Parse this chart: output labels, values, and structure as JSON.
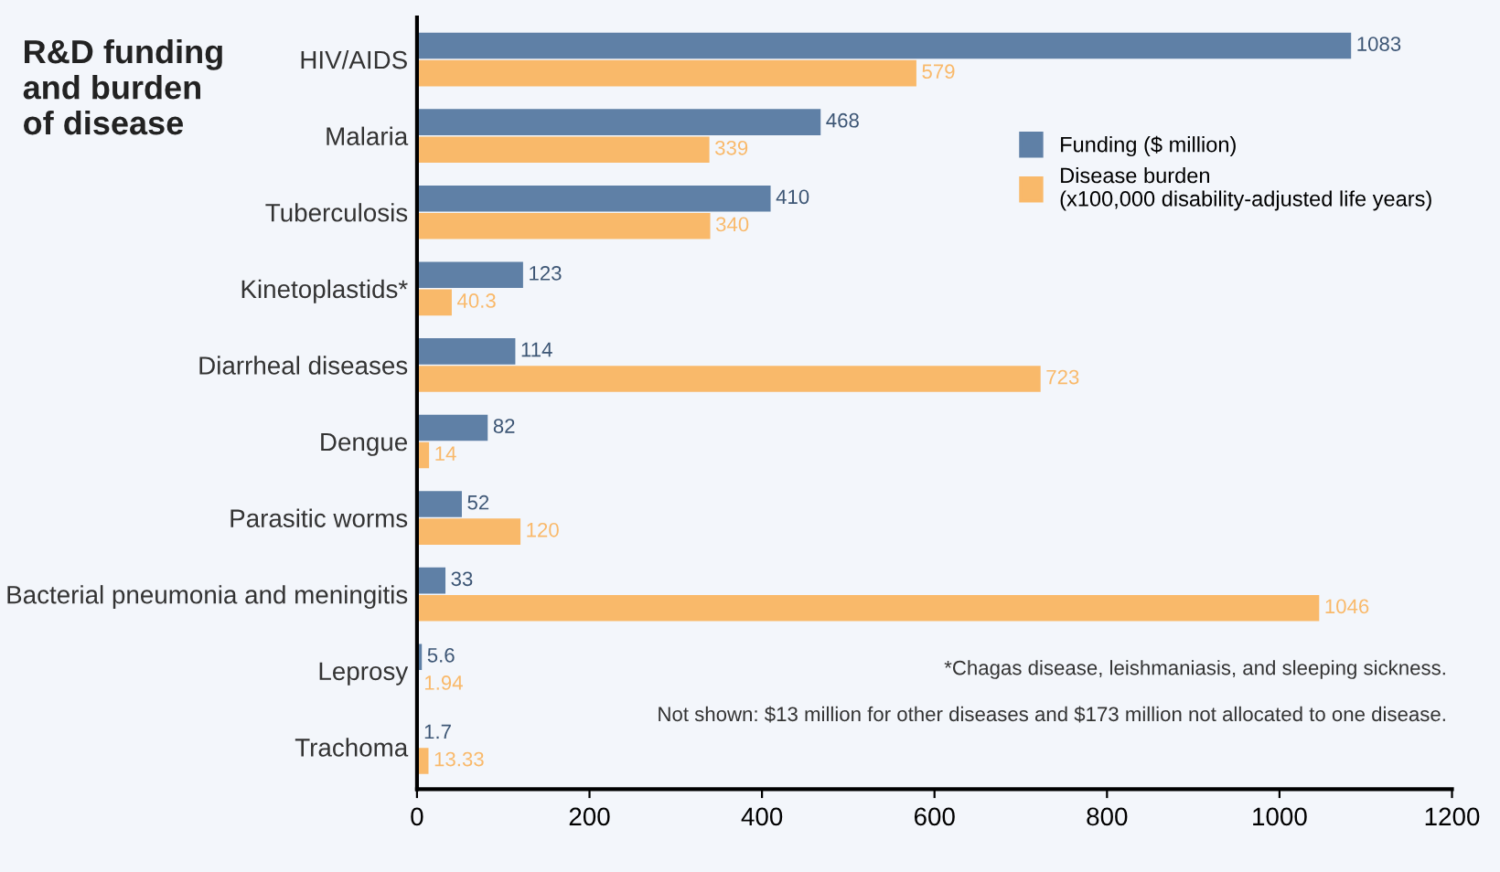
{
  "chart_data": {
    "type": "bar",
    "orientation": "horizontal",
    "title": "R&D funding\nand burden\nof disease",
    "categories": [
      "HIV/AIDS",
      "Malaria",
      "Tuberculosis",
      "Kinetoplastids*",
      "Diarrheal diseases",
      "Dengue",
      "Parasitic worms",
      "Bacterial pneumonia and meningitis",
      "Leprosy",
      "Trachoma"
    ],
    "series": [
      {
        "name": "Funding ($ million)",
        "color": "#5f80a6",
        "values": [
          1083,
          468,
          410,
          123,
          114,
          82,
          52,
          33,
          5.6,
          1.7
        ],
        "value_labels": [
          "1083",
          "468",
          "410",
          "123",
          "114",
          "82",
          "52",
          "33",
          "5.6",
          "1.7"
        ]
      },
      {
        "name": "Disease burden\n(x100,000 disability-adjusted life years)",
        "color": "#f9b96a",
        "values": [
          579,
          339,
          340,
          40.3,
          723,
          14,
          120,
          1046,
          1.94,
          13.33
        ],
        "value_labels": [
          "579",
          "339",
          "340",
          "40.3",
          "723",
          "14",
          "120",
          "1046",
          "1.94",
          "13.33"
        ]
      }
    ],
    "xlim": [
      0,
      1200
    ],
    "xticks": [
      0,
      200,
      400,
      600,
      800,
      1000,
      1200
    ],
    "grid": false,
    "legend": "right",
    "annotations": [
      "*Chagas disease, leishmaniasis, and sleeping sickness.",
      "Not shown: $13 million for other diseases and $173 million not allocated to one disease."
    ]
  }
}
